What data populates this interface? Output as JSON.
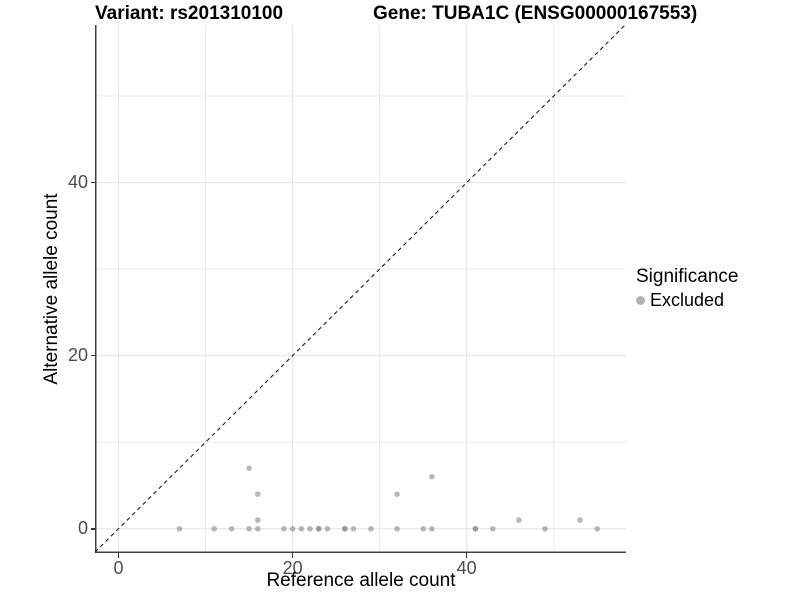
{
  "titles": {
    "variant": "Variant: rs201310100",
    "gene": "Gene: TUBA1C (ENSG00000167553)"
  },
  "axes": {
    "x_label": "Reference allele count",
    "y_label": "Alternative allele count"
  },
  "legend": {
    "title": "Significance",
    "items": [
      {
        "label": "Excluded",
        "color": "#b2b2b2"
      }
    ]
  },
  "colors": {
    "point": "#808080",
    "point_opacity": 0.55,
    "grid": "#e8e8e8",
    "axis_line": "#404040",
    "tick_text": "#4d4d4d",
    "identity_line": "#1a1a1a"
  },
  "chart_data": {
    "type": "scatter",
    "title": "Variant: rs201310100 | Gene: TUBA1C (ENSG00000167553)",
    "xlabel": "Reference allele count",
    "ylabel": "Alternative allele count",
    "xlim": [
      -2.7,
      58.3
    ],
    "ylim": [
      -2.8,
      58.2
    ],
    "x_ticks": [
      0,
      20,
      40
    ],
    "y_ticks": [
      0,
      20,
      40
    ],
    "minor_grid_x": [
      10,
      30,
      50
    ],
    "minor_grid_y": [
      10,
      30,
      50
    ],
    "grid": true,
    "legend_position": "right",
    "identity_line_dashed": true,
    "series": [
      {
        "name": "Excluded",
        "points": [
          [
            7,
            0
          ],
          [
            11,
            0
          ],
          [
            13,
            0
          ],
          [
            15,
            0
          ],
          [
            16,
            0
          ],
          [
            19,
            0
          ],
          [
            20,
            0
          ],
          [
            21,
            0
          ],
          [
            22,
            0
          ],
          [
            23,
            0
          ],
          [
            23,
            0
          ],
          [
            24,
            0
          ],
          [
            26,
            0
          ],
          [
            26,
            0
          ],
          [
            27,
            0
          ],
          [
            29,
            0
          ],
          [
            32,
            0
          ],
          [
            35,
            0
          ],
          [
            36,
            0
          ],
          [
            41,
            0
          ],
          [
            41,
            0
          ],
          [
            43,
            0
          ],
          [
            49,
            0
          ],
          [
            55,
            0
          ],
          [
            16,
            1
          ],
          [
            46,
            1
          ],
          [
            53,
            1
          ],
          [
            16,
            4
          ],
          [
            32,
            4
          ],
          [
            36,
            6
          ],
          [
            15,
            7
          ]
        ]
      }
    ]
  }
}
